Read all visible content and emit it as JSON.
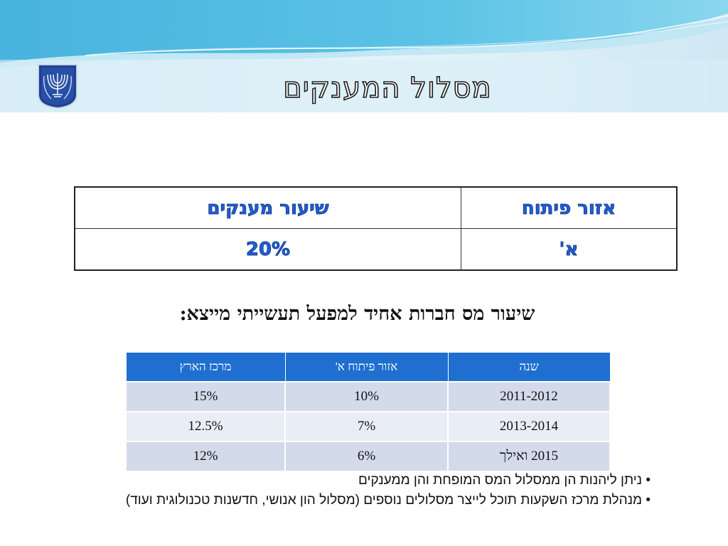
{
  "slide": {
    "title": "מסלול המענקים"
  },
  "grant_table": {
    "headers": [
      "אזור פיתוח",
      "שיעור מענקים"
    ],
    "rows": [
      [
        "א'",
        "20%"
      ]
    ]
  },
  "tax_section": {
    "subtitle": "שיעור מס חברות אחיד למפעל תעשייתי מייצא:",
    "headers": [
      "שנה",
      "אזור פיתוח א'",
      "מרכז הארץ"
    ],
    "rows": [
      [
        "2011-2012",
        "10%",
        "15%"
      ],
      [
        "2013-2014",
        "7%",
        "12.5%"
      ],
      [
        "2015 ואילך",
        "6%",
        "12%"
      ]
    ]
  },
  "bullets": [
    "• ניתן ליהנות הן ממסלול המס המופחת והן ממענקים",
    "• מנהלת מרכז השקעות תוכל לייצר מסלולים נוספים (מסלול הון אנושי, חדשנות טכנולוגית ועוד)"
  ],
  "colors": {
    "header_bar": "#1f6fd0",
    "row_dark": "#d3daea",
    "row_light": "#e9edf5",
    "grant_text": "#1f5fd6"
  },
  "icons": {
    "emblem": "state-emblem-menorah-icon"
  }
}
